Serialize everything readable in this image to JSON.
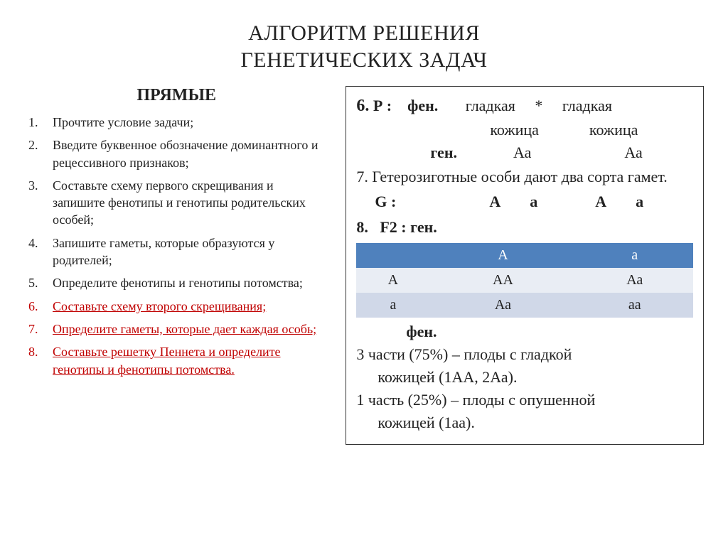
{
  "title_line1": "АЛГОРИТМ РЕШЕНИЯ",
  "title_line2": "ГЕНЕТИЧЕСКИХ ЗАДАЧ",
  "subheader": "ПРЯМЫЕ",
  "steps": [
    {
      "text": "Прочтите условие задачи;",
      "highlight": false
    },
    {
      "text": "Введите буквенное обозначение доминантного и рецессивного признаков;",
      "highlight": false
    },
    {
      "text": "Составьте схему первого скрещивания и запишите фенотипы и генотипы родительских особей;",
      "highlight": false
    },
    {
      "text": "Запишите гаметы, которые образуются у родителей;",
      "highlight": false
    },
    {
      "text": "Определите фенотипы и генотипы потомства;",
      "highlight": false
    },
    {
      "text": "Составьте схему второго скрещивания;",
      "highlight": true
    },
    {
      "text": "Определите гаметы, которые дает каждая особь;",
      "highlight": true
    },
    {
      "text": "Составьте решетку Пеннета и определите генотипы и фенотипы потомства.",
      "highlight": true
    }
  ],
  "colors": {
    "highlight": "#c00000",
    "table_header_bg": "#4f81bd",
    "table_row1_bg": "#e9edf4",
    "table_row2_bg": "#d0d8e8"
  },
  "panel": {
    "p6_num": "6.",
    "p6_label": "Р :",
    "p6_fen": "фен.",
    "p6_smooth1": "гладкая",
    "p6_star": "*",
    "p6_smooth2": "гладкая",
    "p6_skin1": "кожица",
    "p6_skin2": "кожица",
    "p6_gen": "ген.",
    "p6_g1": "Аа",
    "p6_g2": "Аа",
    "p7": "7. Гетерозиготные особи дают два сорта гамет.",
    "g_label": "G :",
    "g_a1": "А",
    "g_a2": "а",
    "g_a3": "А",
    "g_a4": "а",
    "p8": "8.   F2 : ген.",
    "punnett": {
      "col_headers": [
        "А",
        "а"
      ],
      "rows": [
        {
          "h": "А",
          "c1": "АА",
          "c2": "Аа"
        },
        {
          "h": "а",
          "c1": "Аа",
          "c2": "аа"
        }
      ]
    },
    "fen_label": "фен.",
    "r1": "3 части (75%) – плоды с гладкой",
    "r1b": "кожицей (1АА, 2Аа).",
    "r2": "1 часть (25%) – плоды с опушенной",
    "r2b": "кожицей (1аа)."
  }
}
